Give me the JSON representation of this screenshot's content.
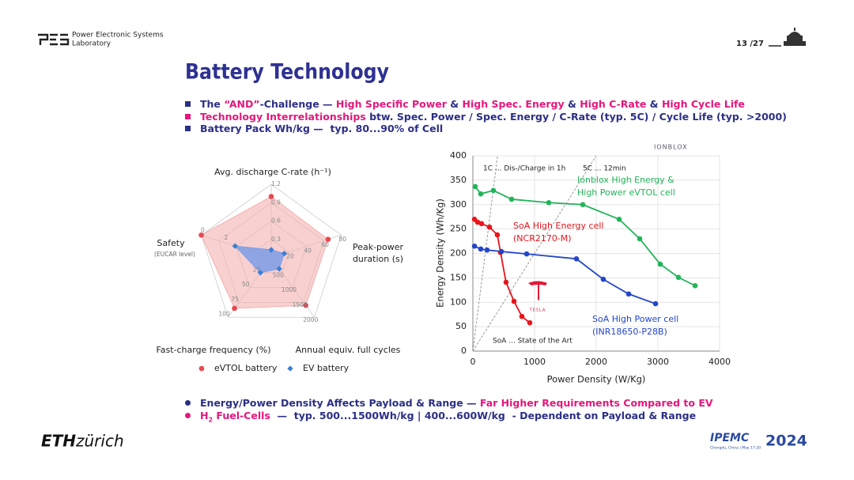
{
  "header": {
    "lab_line1": "Power Electronic Systems",
    "lab_line2": "Laboratory",
    "page": "13 /27"
  },
  "title": "Battery Technology",
  "bullets_top": [
    {
      "color": "#2c2f86",
      "segments": [
        {
          "text": "The ",
          "color": "#2c2f86"
        },
        {
          "text": "“AND”",
          "color": "#e5177b"
        },
        {
          "text": "-Challenge — ",
          "color": "#2c2f86"
        },
        {
          "text": "High Specific Power",
          "color": "#e5177b"
        },
        {
          "text": " & ",
          "color": "#2c2f86"
        },
        {
          "text": "High Spec. Energy",
          "color": "#e5177b"
        },
        {
          "text": " & ",
          "color": "#2c2f86"
        },
        {
          "text": "High C-Rate",
          "color": "#e5177b"
        },
        {
          "text": " & ",
          "color": "#2c2f86"
        },
        {
          "text": "High Cycle Life",
          "color": "#e5177b"
        }
      ]
    },
    {
      "color": "#e5177b",
      "segments": [
        {
          "text": "Technology Interrelationships",
          "color": "#e5177b"
        },
        {
          "text": " btw. Spec. Power / Spec. Energy / C-Rate (typ. 5C) / Cycle Life (typ. >2000)",
          "color": "#2c2f86"
        }
      ]
    },
    {
      "color": "#2c2f86",
      "segments": [
        {
          "text": "Battery Pack Wh/kg —  typ. 80...90% of Cell",
          "color": "#2c2f86"
        }
      ]
    }
  ],
  "chart_data": [
    {
      "type": "radar",
      "axes": [
        {
          "label_lines": [
            "Avg. discharge C-rate (h⁻¹)"
          ],
          "lim": [
            0,
            1.2
          ],
          "ticks": [
            0.3,
            0.6,
            0.9,
            1.2
          ]
        },
        {
          "label_lines": [
            "Peak-power",
            "duration (s)"
          ],
          "lim": [
            0,
            80
          ],
          "ticks": [
            20,
            40,
            60,
            80
          ]
        },
        {
          "label_lines": [
            "Annual equiv. full cycles"
          ],
          "lim": [
            0,
            2000
          ],
          "ticks": [
            500,
            1000,
            1500,
            2000
          ]
        },
        {
          "label_lines": [
            "Fast-charge frequency (%)"
          ],
          "lim": [
            0,
            100
          ],
          "ticks": [
            25,
            50,
            75,
            100
          ]
        },
        {
          "label_lines": [
            "Safety",
            "(EUCAR level)"
          ],
          "lim": [
            6,
            0
          ],
          "ticks": [
            0,
            2
          ]
        }
      ],
      "series": [
        {
          "name": "eVTOL battery",
          "color": "#e8474f",
          "fill": "#f4b0b0",
          "values": [
            1.0,
            65,
            1600,
            85,
            0
          ]
        },
        {
          "name": "EV battery",
          "color": "#3a7fd5",
          "fill": "#7d9ee6",
          "values": [
            0.13,
            15,
            370,
            25,
            2.9
          ]
        }
      ]
    },
    {
      "type": "line",
      "xlabel": "Power Density (W/Kg)",
      "ylabel": "Energy Density (Wh/Kg)",
      "xlim": [
        0,
        4000
      ],
      "xticks": [
        0,
        1000,
        2000,
        3000,
        4000
      ],
      "ylim": [
        0,
        400
      ],
      "yticks": [
        0,
        50,
        100,
        150,
        200,
        250,
        300,
        350,
        400
      ],
      "grid": true,
      "series": [
        {
          "label_lines": [
            "Ionblox High Energy &",
            "High Power eVTOL cell"
          ],
          "color": "#22b45a",
          "x": [
            38,
            128,
            333,
            628,
            1231,
            1782,
            2372,
            2705,
            3038,
            3333,
            3603
          ],
          "values": [
            337,
            322,
            329,
            311,
            304,
            300,
            270,
            230,
            178,
            151,
            134
          ]
        },
        {
          "label_lines": [
            "SoA High Energy cell",
            "(NCR2170-M)"
          ],
          "color": "#e8141c",
          "x": [
            26,
            77,
            141,
            269,
            397,
            449,
            538,
            667,
            795,
            923
          ],
          "values": [
            270,
            264,
            261,
            254,
            238,
            202,
            141,
            102,
            71,
            58
          ]
        },
        {
          "label_lines": [
            "SoA High Power cell",
            "(INR18650-P28B)"
          ],
          "color": "#2446c8",
          "x": [
            26,
            128,
            231,
            462,
            872,
            1679,
            2115,
            2526,
            2962
          ],
          "values": [
            215,
            209,
            207,
            204,
            199,
            189,
            147,
            117,
            97
          ]
        }
      ],
      "reference_lines": [
        {
          "label": "1C ... Dis-/Charge in 1h",
          "slope": 1
        },
        {
          "label": "5C ... 12min",
          "slope": 0.2
        }
      ],
      "note": "SoA ... State of the Art",
      "logos": {
        "ionblox": "IONBLOX",
        "tesla": "TESLA"
      }
    }
  ],
  "bullets_bottom": [
    {
      "color": "#2c2f86",
      "segments": [
        {
          "text": "Energy/Power Density Affects Payload & Range — ",
          "color": "#2c2f86"
        },
        {
          "text": "Far Higher Requirements Compared to EV",
          "color": "#e5177b"
        }
      ]
    },
    {
      "color": "#e5177b",
      "segments": [
        {
          "text": "H",
          "color": "#e5177b"
        },
        {
          "text": "2",
          "color": "#e5177b",
          "sub": true
        },
        {
          "text": " Fuel-Cells",
          "color": "#e5177b"
        },
        {
          "text": "  —  typ. 500...1500Wh/kg | 400...600W/kg  - Dependent on Payload & Range",
          "color": "#2c2f86"
        }
      ]
    }
  ],
  "footer": {
    "eth": "ETH",
    "zurich": "zürich",
    "ipemc": "IPEMC",
    "ipemc_sub": "Chengdu, China | May 17-20",
    "year": "2024"
  }
}
